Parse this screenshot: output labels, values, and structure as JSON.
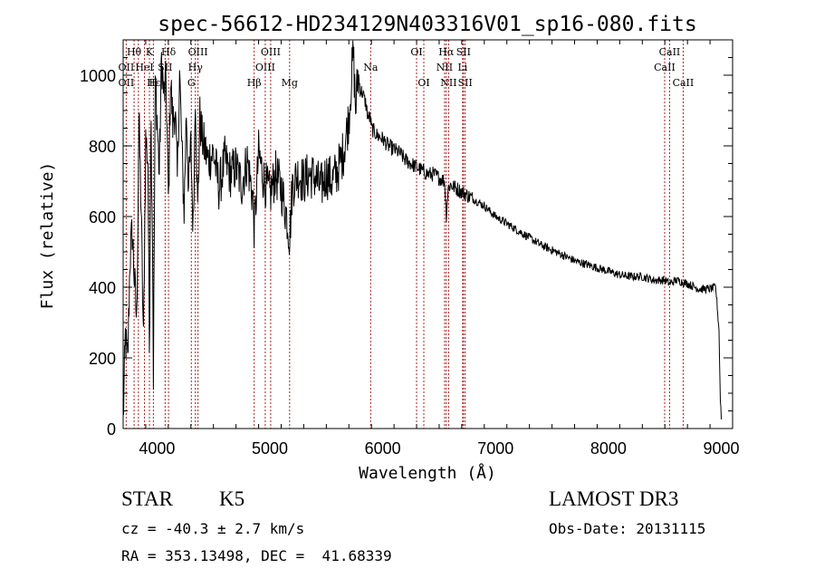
{
  "chart_data": {
    "type": "line",
    "title": "spec-56612-HD234129N403316V01_sp16-080.fits",
    "xlabel": "Wavelength (Å)",
    "ylabel": "Flux (relative)",
    "xlim": [
      3700,
      9100
    ],
    "ylim": [
      0,
      1100
    ],
    "x_ticks": [
      4000,
      5000,
      6000,
      7000,
      8000,
      9000
    ],
    "y_ticks": [
      0,
      200,
      400,
      600,
      800,
      1000
    ],
    "grid": false,
    "series": [
      {
        "name": "flux",
        "x": [
          3700,
          3720,
          3740,
          3760,
          3780,
          3800,
          3820,
          3840,
          3860,
          3880,
          3900,
          3920,
          3933,
          3945,
          3960,
          3968,
          3985,
          4000,
          4020,
          4040,
          4060,
          4080,
          4102,
          4120,
          4140,
          4160,
          4180,
          4200,
          4220,
          4240,
          4260,
          4280,
          4300,
          4320,
          4340,
          4360,
          4380,
          4400,
          4450,
          4500,
          4550,
          4600,
          4650,
          4700,
          4750,
          4800,
          4850,
          4862,
          4900,
          4950,
          5000,
          5050,
          5100,
          5150,
          5175,
          5200,
          5250,
          5300,
          5350,
          5400,
          5450,
          5500,
          5550,
          5600,
          5650,
          5700,
          5720,
          5740,
          5760,
          5780,
          5800,
          5820,
          5850,
          5870,
          5890,
          5900,
          5950,
          6000,
          6050,
          6100,
          6150,
          6200,
          6250,
          6300,
          6350,
          6400,
          6450,
          6500,
          6550,
          6563,
          6580,
          6600,
          6650,
          6700,
          6750,
          6800,
          6850,
          6900,
          6950,
          7000,
          7100,
          7200,
          7300,
          7400,
          7500,
          7600,
          7700,
          7800,
          7900,
          8000,
          8100,
          8200,
          8300,
          8400,
          8500,
          8542,
          8600,
          8700,
          8800,
          8900,
          8950,
          8980,
          8990,
          9000
        ],
        "values": [
          20,
          260,
          180,
          480,
          560,
          420,
          300,
          880,
          620,
          240,
          820,
          760,
          180,
          920,
          560,
          150,
          1000,
          880,
          720,
          1050,
          940,
          980,
          620,
          1000,
          860,
          910,
          700,
          1010,
          790,
          620,
          900,
          680,
          800,
          560,
          960,
          610,
          880,
          820,
          760,
          780,
          680,
          760,
          720,
          740,
          690,
          760,
          650,
          560,
          780,
          700,
          660,
          720,
          680,
          600,
          540,
          690,
          720,
          700,
          720,
          710,
          680,
          720,
          700,
          730,
          780,
          880,
          980,
          1060,
          900,
          1000,
          960,
          950,
          920,
          880,
          880,
          850,
          830,
          820,
          800,
          790,
          780,
          760,
          750,
          740,
          730,
          720,
          720,
          710,
          700,
          600,
          680,
          690,
          680,
          670,
          660,
          650,
          640,
          630,
          615,
          600,
          580,
          560,
          540,
          520,
          505,
          490,
          475,
          465,
          455,
          445,
          435,
          430,
          430,
          420,
          420,
          410,
          420,
          410,
          395,
          395,
          400,
          280,
          100,
          30
        ]
      }
    ],
    "line_labels": [
      {
        "text": "Hθ",
        "wl": 3797,
        "row": 0
      },
      {
        "text": "K",
        "wl": 3933,
        "row": 0
      },
      {
        "text": "Hδ",
        "wl": 4102,
        "row": 0
      },
      {
        "text": "OIII",
        "wl": 4363,
        "row": 0
      },
      {
        "text": "OIII",
        "wl": 5007,
        "row": 0
      },
      {
        "text": "OI",
        "wl": 6300,
        "row": 0
      },
      {
        "text": "Hα",
        "wl": 6563,
        "row": 0
      },
      {
        "text": "SII",
        "wl": 6716,
        "row": 0
      },
      {
        "text": "CaII",
        "wl": 8542,
        "row": 0
      },
      {
        "text": "OII",
        "wl": 3727,
        "row": 1
      },
      {
        "text": "HeI",
        "wl": 3889,
        "row": 1
      },
      {
        "text": "SII",
        "wl": 4072,
        "row": 1
      },
      {
        "text": "Hγ",
        "wl": 4340,
        "row": 1
      },
      {
        "text": "OIII",
        "wl": 4959,
        "row": 1
      },
      {
        "text": "Na",
        "wl": 5893,
        "row": 1
      },
      {
        "text": "NII",
        "wl": 6548,
        "row": 1
      },
      {
        "text": "Li",
        "wl": 6708,
        "row": 1
      },
      {
        "text": "CaII",
        "wl": 8498,
        "row": 1
      },
      {
        "text": "OII",
        "wl": 3727,
        "row": 2
      },
      {
        "text": "Hε",
        "wl": 3970,
        "row": 2
      },
      {
        "text": "H",
        "wl": 3968,
        "row": 2
      },
      {
        "text": "G",
        "wl": 4304,
        "row": 2
      },
      {
        "text": "Hβ",
        "wl": 4861,
        "row": 2
      },
      {
        "text": "Mg",
        "wl": 5175,
        "row": 2
      },
      {
        "text": "OI",
        "wl": 6364,
        "row": 2
      },
      {
        "text": "NII",
        "wl": 6584,
        "row": 2
      },
      {
        "text": "SII",
        "wl": 6731,
        "row": 2
      },
      {
        "text": "CaII",
        "wl": 8662,
        "row": 2
      }
    ],
    "marker_lines": [
      3727,
      3797,
      3835,
      3889,
      3933,
      3968,
      4072,
      4102,
      4304,
      4340,
      4363,
      4861,
      4959,
      5007,
      5175,
      5893,
      6300,
      6364,
      6548,
      6563,
      6584,
      6708,
      6716,
      6731,
      8498,
      8542,
      8662
    ],
    "colors": {
      "spectrum": "#000000",
      "marker": "#b02020"
    }
  },
  "info": {
    "object_class": "STAR",
    "subclass": "K5",
    "survey": "LAMOST DR3",
    "redshift": "cz = -40.3 ± 2.7 km/s",
    "obs_date": "Obs-Date: 20131115",
    "coords": "RA = 353.13498, DEC =  41.68339"
  }
}
